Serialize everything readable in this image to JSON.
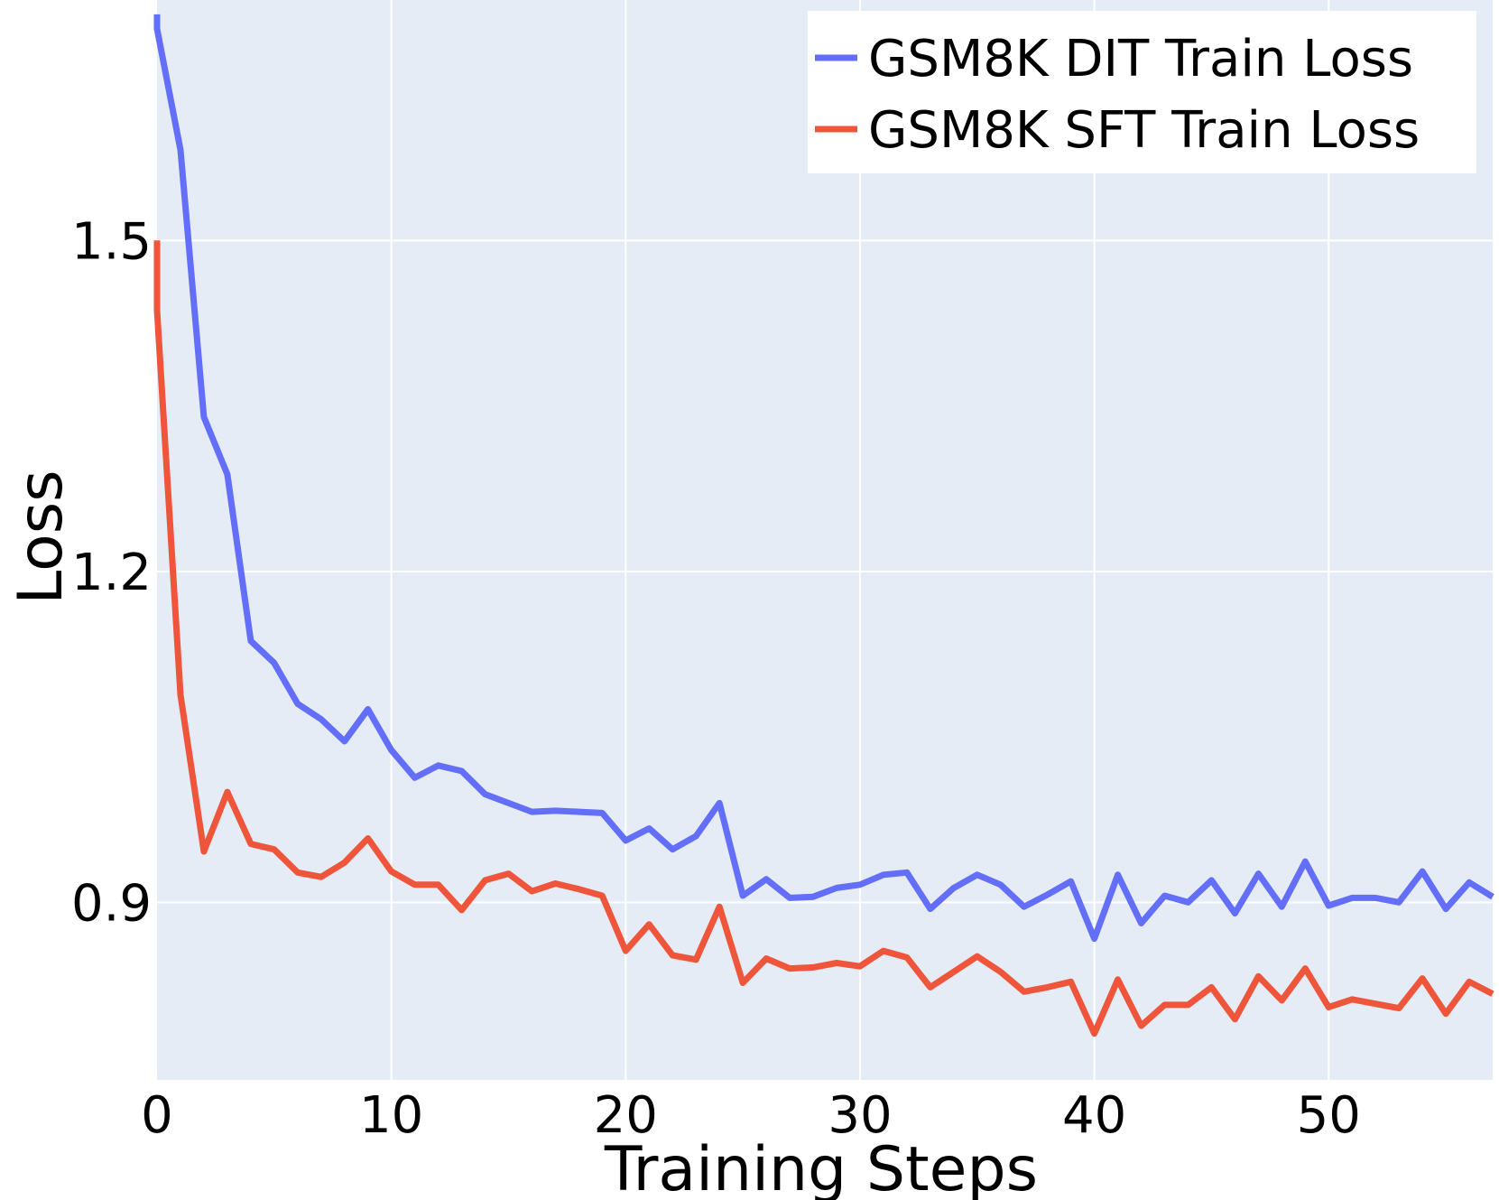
{
  "chart_data": {
    "type": "line",
    "title": "",
    "xlabel": "Training Steps",
    "ylabel": "Loss",
    "xlim": [
      0,
      57
    ],
    "ylim": [
      0.739,
      1.718
    ],
    "grid": true,
    "legend_position": "top-right",
    "background_color": "#e5ecf6",
    "x_ticks": [
      0,
      10,
      20,
      30,
      40,
      50
    ],
    "x_tick_labels": [
      "0",
      "10",
      "20",
      "30",
      "40",
      "50"
    ],
    "y_ticks": [
      0.9,
      1.2,
      1.5
    ],
    "y_tick_labels": [
      "0.9",
      "1.2",
      "1.5"
    ],
    "series": [
      {
        "name": "GSM8K DIT Train Loss",
        "color": "#636efa",
        "x": [
          0,
          0,
          1,
          2,
          3,
          4,
          5,
          6,
          7,
          8,
          9,
          10,
          11,
          12,
          13,
          14,
          15,
          16,
          17,
          18,
          19,
          20,
          21,
          22,
          23,
          24,
          25,
          26,
          27,
          28,
          29,
          30,
          31,
          32,
          33,
          34,
          35,
          36,
          37,
          38,
          39,
          40,
          41,
          42,
          43,
          44,
          45,
          46,
          47,
          48,
          49,
          50,
          51,
          52,
          53,
          54,
          55,
          56,
          57
        ],
        "values": [
          1.705,
          1.692,
          1.582,
          1.34,
          1.288,
          1.137,
          1.117,
          1.08,
          1.066,
          1.046,
          1.075,
          1.038,
          1.013,
          1.024,
          1.019,
          0.998,
          0.99,
          0.982,
          0.983,
          0.982,
          0.981,
          0.956,
          0.967,
          0.948,
          0.96,
          0.99,
          0.906,
          0.921,
          0.904,
          0.905,
          0.913,
          0.916,
          0.925,
          0.927,
          0.894,
          0.913,
          0.925,
          0.916,
          0.896,
          0.907,
          0.919,
          0.867,
          0.925,
          0.881,
          0.906,
          0.9,
          0.92,
          0.89,
          0.926,
          0.896,
          0.937,
          0.897,
          0.904,
          0.904,
          0.9,
          0.928,
          0.894,
          0.918,
          0.905
        ]
      },
      {
        "name": "GSM8K SFT Train Loss",
        "color": "#ef553b",
        "x": [
          0,
          0,
          1,
          2,
          3,
          4,
          5,
          6,
          7,
          8,
          9,
          10,
          11,
          12,
          13,
          14,
          15,
          16,
          17,
          18,
          19,
          20,
          21,
          22,
          23,
          24,
          25,
          26,
          27,
          28,
          29,
          30,
          31,
          32,
          33,
          34,
          35,
          36,
          37,
          38,
          39,
          40,
          41,
          42,
          43,
          44,
          45,
          46,
          47,
          48,
          49,
          50,
          51,
          52,
          53,
          54,
          55,
          56,
          57
        ],
        "values": [
          1.5,
          1.437,
          1.088,
          0.946,
          1.0,
          0.953,
          0.948,
          0.927,
          0.923,
          0.936,
          0.958,
          0.928,
          0.916,
          0.916,
          0.893,
          0.92,
          0.926,
          0.91,
          0.917,
          0.912,
          0.906,
          0.856,
          0.88,
          0.852,
          0.848,
          0.896,
          0.827,
          0.849,
          0.84,
          0.841,
          0.845,
          0.842,
          0.856,
          0.85,
          0.823,
          0.837,
          0.851,
          0.837,
          0.819,
          0.823,
          0.828,
          0.781,
          0.83,
          0.788,
          0.807,
          0.807,
          0.823,
          0.794,
          0.833,
          0.811,
          0.84,
          0.805,
          0.812,
          0.808,
          0.804,
          0.831,
          0.799,
          0.828,
          0.817
        ]
      }
    ]
  }
}
